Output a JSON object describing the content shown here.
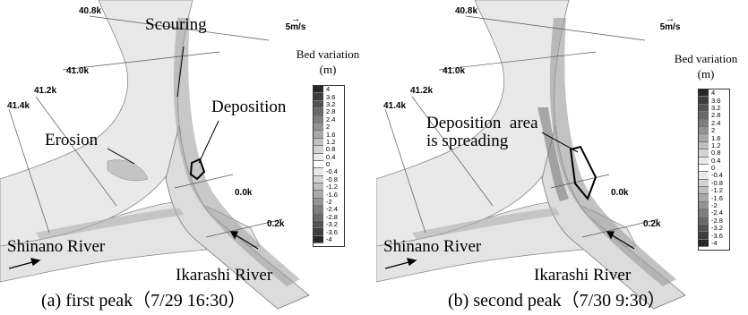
{
  "panels": [
    {
      "caption": "(a) first peak（7/29 16:30）",
      "km_labels": [
        "40.8k",
        "41.0k",
        "41.2k",
        "41.4k",
        "0.0k",
        "0.2k"
      ],
      "annotations": [
        "Scouring",
        "Deposition",
        "Erosion"
      ],
      "rivers": [
        "Shinano River",
        "Ikarashi River"
      ],
      "scale": "5m/s",
      "legend_title": [
        "Bed variation",
        "(m)"
      ]
    },
    {
      "caption": "(b) second peak（7/30 9:30）",
      "km_labels": [
        "40.8k",
        "41.0k",
        "41.2k",
        "41.4k",
        "0.0k",
        "0.2k"
      ],
      "annotations": [
        "Deposition  area",
        "is spreading"
      ],
      "rivers": [
        "Shinano River",
        "Ikarashi River"
      ],
      "scale": "5m/s",
      "legend_title": [
        "Bed variation",
        "(m)"
      ]
    }
  ],
  "legend_values": [
    "4",
    "3.6",
    "3.2",
    "2.8",
    "2.4",
    "2",
    "1.6",
    "1.2",
    "0.8",
    "0.4",
    "0",
    "-0.4",
    "-0.8",
    "-1.2",
    "-1.6",
    "-2",
    "-2.4",
    "-2.8",
    "-3.2",
    "-3.6",
    "-4"
  ],
  "colors": {
    "river_fill": "#e8e8e8",
    "land": "#ffffff",
    "zone_outline": "#000000"
  }
}
